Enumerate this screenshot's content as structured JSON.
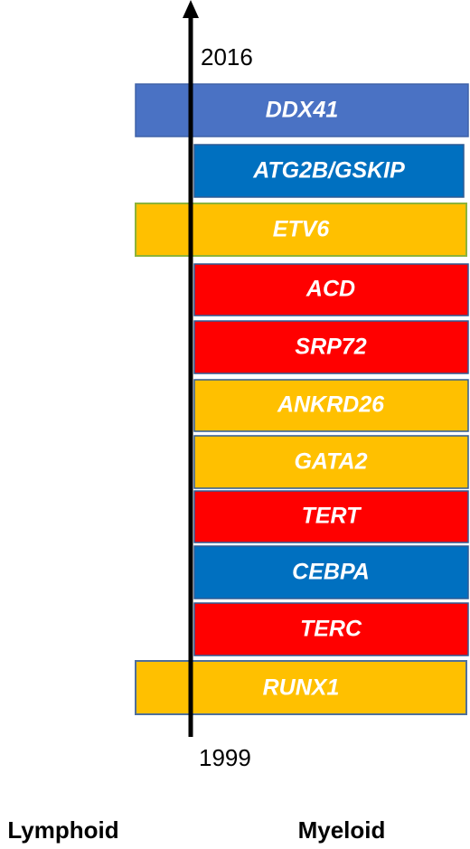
{
  "axis": {
    "top": "2016",
    "bottom": "1999"
  },
  "genes": [
    "DDX41",
    "ATG2B/GSKIP",
    "ETV6",
    "ACD",
    "SRP72",
    "ANKRD26",
    "GATA2",
    "TERT",
    "CEBPA",
    "TERC",
    "RUNX1"
  ],
  "labels": {
    "left": "Lymphoid",
    "right": "Myeloid"
  }
}
